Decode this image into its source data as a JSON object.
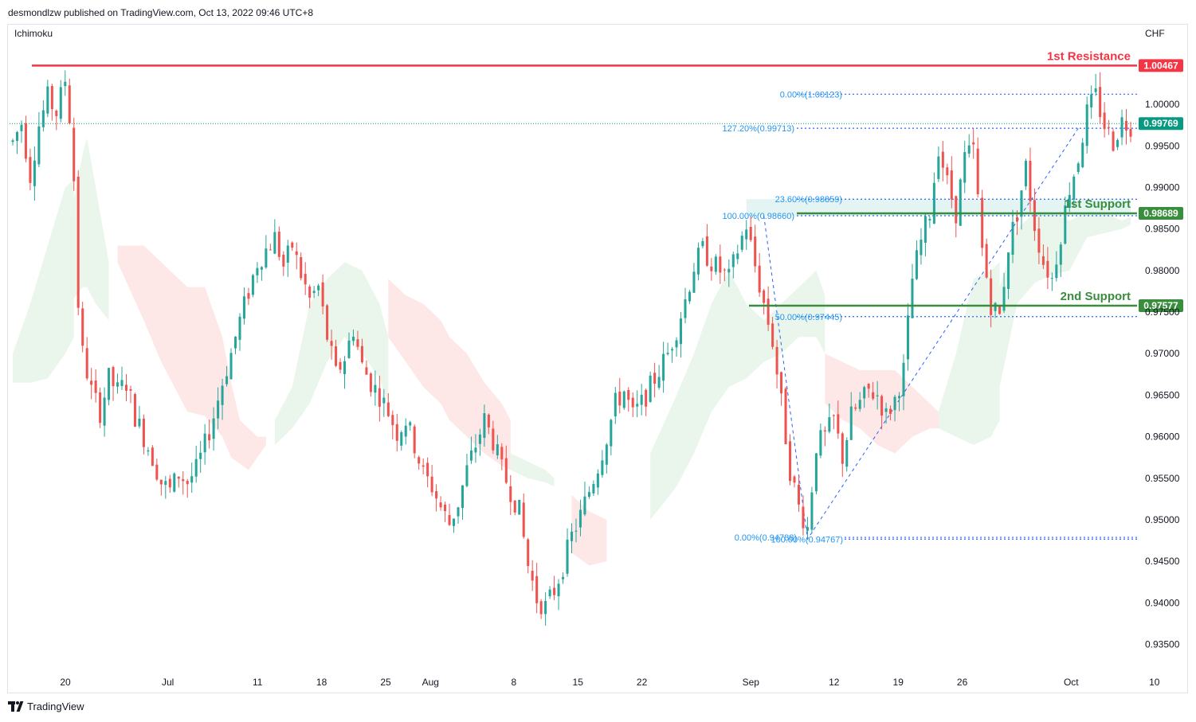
{
  "header": {
    "publisher_line": "desmondlzw published on TradingView.com, Oct 13, 2022 09:46 UTC+8"
  },
  "indicator_label": "Ichimoku",
  "currency_label": "CHF",
  "footer": {
    "brand": "TradingView"
  },
  "colors": {
    "up": "#26a69a",
    "down": "#ef5350",
    "resistance": "#f23645",
    "support": "#388e3c",
    "fib": "#2962ff",
    "fib_text": "#2196f3",
    "last_price": "#089981",
    "cloud_bull": "#e8f5e9",
    "cloud_bear": "#fde4e4"
  },
  "chart_data": {
    "type": "candlestick",
    "x_tick_labels": [
      "20",
      "Jul",
      "11",
      "18",
      "25",
      "Aug",
      "8",
      "15",
      "22",
      "Sep",
      "12",
      "19",
      "26",
      "Oct",
      "10"
    ],
    "x_tick_weeks": [
      0,
      1.6,
      3,
      4,
      5,
      5.7,
      7,
      8,
      9,
      10.7,
      12,
      13,
      14,
      15.7,
      17
    ],
    "y_ticks": [
      "1.00000",
      "0.99500",
      "0.99000",
      "0.98500",
      "0.98000",
      "0.97500",
      "0.97000",
      "0.96500",
      "0.96000",
      "0.95500",
      "0.95000",
      "0.94500",
      "0.94000",
      "0.93500"
    ],
    "ylim": [
      0.9315,
      1.0095
    ],
    "last_price": {
      "label": "0.99769",
      "value": 0.99769
    },
    "levels": [
      {
        "name": "1st Resistance",
        "value": 1.00467,
        "label": "1.00467",
        "kind": "resistance"
      },
      {
        "name": "1st Support",
        "value": 0.98689,
        "label": "0.98689",
        "kind": "support"
      },
      {
        "name": "2nd Support",
        "value": 0.97577,
        "label": "0.97577",
        "kind": "support"
      }
    ],
    "fib_levels": [
      {
        "label": "0.00%(1.00123)",
        "value": 1.00123
      },
      {
        "label": "127.20%(0.99713)",
        "value": 0.99713
      },
      {
        "label": "23.60%(0.98859)",
        "value": 0.98859
      },
      {
        "label": "100.00%(0.98660)",
        "value": 0.9866
      },
      {
        "label": "50.00%(0.97445)",
        "value": 0.97445
      },
      {
        "label": "0.00%(0.94788)",
        "value": 0.94788
      },
      {
        "label": "100.00%(0.94767)",
        "value": 0.94767
      }
    ],
    "path_keypoints": [
      [
        0,
        0.9955
      ],
      [
        2,
        0.9978
      ],
      [
        4,
        0.9915
      ],
      [
        6,
        0.9975
      ],
      [
        8,
        1.0008
      ],
      [
        10,
        0.999
      ],
      [
        12,
        1.003
      ],
      [
        13,
        0.9985
      ],
      [
        14,
        0.991
      ],
      [
        15,
        0.976
      ],
      [
        16,
        0.97
      ],
      [
        18,
        0.9655
      ],
      [
        20,
        0.963
      ],
      [
        22,
        0.967
      ],
      [
        24,
        0.9655
      ],
      [
        26,
        0.9665
      ],
      [
        28,
        0.9625
      ],
      [
        30,
        0.96
      ],
      [
        32,
        0.9575
      ],
      [
        34,
        0.9545
      ],
      [
        36,
        0.9535
      ],
      [
        38,
        0.9555
      ],
      [
        40,
        0.9545
      ],
      [
        42,
        0.956
      ],
      [
        44,
        0.959
      ],
      [
        46,
        0.9625
      ],
      [
        48,
        0.9665
      ],
      [
        50,
        0.97
      ],
      [
        52,
        0.974
      ],
      [
        54,
        0.9775
      ],
      [
        56,
        0.981
      ],
      [
        58,
        0.9825
      ],
      [
        60,
        0.984
      ],
      [
        62,
        0.9805
      ],
      [
        64,
        0.983
      ],
      [
        66,
        0.9795
      ],
      [
        68,
        0.9765
      ],
      [
        70,
        0.978
      ],
      [
        72,
        0.972
      ],
      [
        74,
        0.9675
      ],
      [
        76,
        0.9695
      ],
      [
        78,
        0.973
      ],
      [
        80,
        0.9685
      ],
      [
        82,
        0.9665
      ],
      [
        84,
        0.965
      ],
      [
        86,
        0.963
      ],
      [
        88,
        0.9605
      ],
      [
        90,
        0.962
      ],
      [
        92,
        0.959
      ],
      [
        94,
        0.9555
      ],
      [
        96,
        0.954
      ],
      [
        98,
        0.9515
      ],
      [
        100,
        0.9495
      ],
      [
        102,
        0.952
      ],
      [
        104,
        0.956
      ],
      [
        106,
        0.959
      ],
      [
        108,
        0.962
      ],
      [
        110,
        0.9595
      ],
      [
        112,
        0.956
      ],
      [
        114,
        0.9535
      ],
      [
        116,
        0.951
      ],
      [
        118,
        0.9445
      ],
      [
        120,
        0.9405
      ],
      [
        122,
        0.9395
      ],
      [
        124,
        0.9415
      ],
      [
        126,
        0.9445
      ],
      [
        128,
        0.948
      ],
      [
        130,
        0.9505
      ],
      [
        132,
        0.9535
      ],
      [
        134,
        0.9565
      ],
      [
        136,
        0.96
      ],
      [
        138,
        0.964
      ],
      [
        140,
        0.9655
      ],
      [
        142,
        0.9625
      ],
      [
        144,
        0.964
      ],
      [
        146,
        0.966
      ],
      [
        148,
        0.968
      ],
      [
        150,
        0.97
      ],
      [
        152,
        0.973
      ],
      [
        154,
        0.9765
      ],
      [
        156,
        0.9805
      ],
      [
        158,
        0.9825
      ],
      [
        160,
        0.981
      ],
      [
        162,
        0.98
      ],
      [
        164,
        0.979
      ],
      [
        166,
        0.9825
      ],
      [
        168,
        0.9855
      ],
      [
        170,
        0.9805
      ],
      [
        172,
        0.976
      ],
      [
        174,
        0.9715
      ],
      [
        176,
        0.964
      ],
      [
        178,
        0.956
      ],
      [
        180,
        0.9515
      ],
      [
        182,
        0.949
      ],
      [
        184,
        0.959
      ],
      [
        186,
        0.96
      ],
      [
        188,
        0.962
      ],
      [
        190,
        0.9575
      ],
      [
        192,
        0.9625
      ],
      [
        194,
        0.964
      ],
      [
        196,
        0.9655
      ],
      [
        198,
        0.965
      ],
      [
        200,
        0.9625
      ],
      [
        202,
        0.9645
      ],
      [
        204,
        0.968
      ],
      [
        206,
        0.979
      ],
      [
        208,
        0.9835
      ],
      [
        210,
        0.987
      ],
      [
        212,
        0.995
      ],
      [
        214,
        0.9905
      ],
      [
        216,
        0.987
      ],
      [
        218,
        0.9935
      ],
      [
        220,
        0.9945
      ],
      [
        222,
        0.9825
      ],
      [
        224,
        0.976
      ],
      [
        226,
        0.9745
      ],
      [
        228,
        0.983
      ],
      [
        230,
        0.987
      ],
      [
        232,
        0.9925
      ],
      [
        234,
        0.9855
      ],
      [
        236,
        0.981
      ],
      [
        238,
        0.979
      ],
      [
        240,
        0.9845
      ],
      [
        242,
        0.99
      ],
      [
        244,
        0.9935
      ],
      [
        246,
        0.999
      ],
      [
        248,
        1.001
      ],
      [
        250,
        0.9975
      ],
      [
        252,
        0.9955
      ],
      [
        254,
        0.998
      ],
      [
        256,
        0.9975
      ]
    ],
    "cloud_polygons": [
      {
        "kind": "bull",
        "upper": [
          [
            0,
            0.97
          ],
          [
            4,
            0.976
          ],
          [
            8,
            0.983
          ],
          [
            12,
            0.99
          ],
          [
            14,
            0.991
          ]
        ],
        "lower": [
          [
            0,
            0.9665
          ],
          [
            4,
            0.9665
          ],
          [
            8,
            0.967
          ],
          [
            12,
            0.97
          ],
          [
            14,
            0.972
          ]
        ]
      },
      {
        "kind": "bull",
        "upper": [
          [
            13,
            0.986
          ],
          [
            16,
            0.994
          ],
          [
            17,
            0.996
          ]
        ],
        "lower": [
          [
            13,
            0.976
          ],
          [
            16,
            0.978
          ],
          [
            17,
            0.978
          ]
        ]
      },
      {
        "kind": "bull",
        "upper": [
          [
            17,
            0.996
          ],
          [
            19,
            0.99
          ],
          [
            22,
            0.981
          ]
        ],
        "lower": [
          [
            17,
            0.978
          ],
          [
            19,
            0.976
          ],
          [
            22,
            0.974
          ]
        ]
      },
      {
        "kind": "bear",
        "upper": [
          [
            24,
            0.983
          ],
          [
            30,
            0.983
          ],
          [
            36,
            0.98
          ],
          [
            40,
            0.978
          ],
          [
            44,
            0.978
          ],
          [
            48,
            0.972
          ],
          [
            50,
            0.9665
          ],
          [
            52,
            0.962
          ],
          [
            56,
            0.96
          ],
          [
            58,
            0.96
          ]
        ],
        "lower": [
          [
            24,
            0.981
          ],
          [
            30,
            0.974
          ],
          [
            34,
            0.969
          ],
          [
            38,
            0.965
          ],
          [
            40,
            0.963
          ],
          [
            44,
            0.9625
          ],
          [
            48,
            0.96
          ],
          [
            50,
            0.9575
          ],
          [
            54,
            0.956
          ],
          [
            58,
            0.959
          ]
        ]
      },
      {
        "kind": "bull",
        "upper": [
          [
            60,
            0.962
          ],
          [
            64,
            0.966
          ],
          [
            68,
            0.976
          ],
          [
            72,
            0.979
          ],
          [
            76,
            0.981
          ],
          [
            80,
            0.98
          ],
          [
            84,
            0.976
          ],
          [
            86,
            0.972
          ]
        ],
        "lower": [
          [
            60,
            0.959
          ],
          [
            64,
            0.961
          ],
          [
            68,
            0.964
          ],
          [
            72,
            0.969
          ],
          [
            76,
            0.972
          ],
          [
            80,
            0.97
          ],
          [
            84,
            0.967
          ],
          [
            86,
            0.964
          ]
        ]
      },
      {
        "kind": "bear",
        "upper": [
          [
            86,
            0.979
          ],
          [
            90,
            0.977
          ],
          [
            94,
            0.976
          ],
          [
            98,
            0.974
          ],
          [
            100,
            0.972
          ],
          [
            104,
            0.97
          ],
          [
            108,
            0.9665
          ],
          [
            112,
            0.964
          ],
          [
            114,
            0.962
          ]
        ],
        "lower": [
          [
            86,
            0.972
          ],
          [
            90,
            0.969
          ],
          [
            94,
            0.966
          ],
          [
            98,
            0.964
          ],
          [
            100,
            0.962
          ],
          [
            104,
            0.96
          ],
          [
            108,
            0.958
          ],
          [
            112,
            0.9565
          ],
          [
            114,
            0.956
          ]
        ]
      },
      {
        "kind": "bull",
        "upper": [
          [
            114,
            0.958
          ],
          [
            118,
            0.957
          ],
          [
            122,
            0.956
          ],
          [
            124,
            0.955
          ]
        ],
        "lower": [
          [
            114,
            0.956
          ],
          [
            118,
            0.955
          ],
          [
            122,
            0.9545
          ],
          [
            124,
            0.954
          ]
        ]
      },
      {
        "kind": "bear",
        "upper": [
          [
            128,
            0.953
          ],
          [
            132,
            0.951
          ],
          [
            136,
            0.95
          ]
        ],
        "lower": [
          [
            128,
            0.946
          ],
          [
            132,
            0.9445
          ],
          [
            136,
            0.945
          ]
        ]
      },
      {
        "kind": "bull",
        "upper": [
          [
            146,
            0.958
          ],
          [
            152,
            0.965
          ],
          [
            156,
            0.97
          ],
          [
            160,
            0.976
          ],
          [
            164,
            0.98
          ],
          [
            168,
            0.976
          ],
          [
            172,
            0.974
          ],
          [
            176,
            0.976
          ],
          [
            180,
            0.978
          ],
          [
            184,
            0.98
          ],
          [
            186,
            0.977
          ]
        ],
        "lower": [
          [
            146,
            0.95
          ],
          [
            152,
            0.954
          ],
          [
            156,
            0.958
          ],
          [
            160,
            0.963
          ],
          [
            164,
            0.966
          ],
          [
            168,
            0.967
          ],
          [
            172,
            0.969
          ],
          [
            176,
            0.97
          ],
          [
            180,
            0.972
          ],
          [
            184,
            0.972
          ],
          [
            186,
            0.97
          ]
        ]
      },
      {
        "kind": "bear",
        "upper": [
          [
            186,
            0.97
          ],
          [
            190,
            0.969
          ],
          [
            194,
            0.968
          ],
          [
            198,
            0.968
          ],
          [
            202,
            0.968
          ],
          [
            206,
            0.966
          ],
          [
            210,
            0.964
          ],
          [
            212,
            0.963
          ]
        ],
        "lower": [
          [
            186,
            0.964
          ],
          [
            190,
            0.962
          ],
          [
            194,
            0.961
          ],
          [
            198,
            0.959
          ],
          [
            202,
            0.958
          ],
          [
            206,
            0.96
          ],
          [
            210,
            0.961
          ],
          [
            212,
            0.961
          ]
        ]
      },
      {
        "kind": "bull",
        "upper": [
          [
            212,
            0.963
          ],
          [
            216,
            0.97
          ],
          [
            220,
            0.979
          ],
          [
            224,
            0.98
          ],
          [
            226,
            0.981
          ]
        ],
        "lower": [
          [
            212,
            0.961
          ],
          [
            216,
            0.96
          ],
          [
            220,
            0.959
          ],
          [
            224,
            0.96
          ],
          [
            226,
            0.962
          ]
        ]
      },
      {
        "kind": "bull",
        "upper": [
          [
            226,
            0.978
          ],
          [
            230,
            0.985
          ],
          [
            234,
            0.987
          ],
          [
            238,
            0.987
          ],
          [
            242,
            0.986
          ],
          [
            246,
            0.987
          ],
          [
            250,
            0.987
          ],
          [
            254,
            0.986
          ],
          [
            256,
            0.9865
          ]
        ],
        "lower": [
          [
            226,
            0.966
          ],
          [
            230,
            0.976
          ],
          [
            234,
            0.9785
          ],
          [
            238,
            0.9795
          ],
          [
            242,
            0.98
          ],
          [
            246,
            0.984
          ],
          [
            250,
            0.9845
          ],
          [
            254,
            0.985
          ],
          [
            256,
            0.9855
          ]
        ]
      }
    ],
    "fib_extension_path": [
      [
        172,
        0.9866
      ],
      [
        182,
        0.94767
      ],
      [
        244,
        0.99713
      ]
    ],
    "fib_retracement_zone": {
      "from_index": 168,
      "to_index": 256,
      "upper": 0.98859,
      "lower": 0.9866
    }
  }
}
